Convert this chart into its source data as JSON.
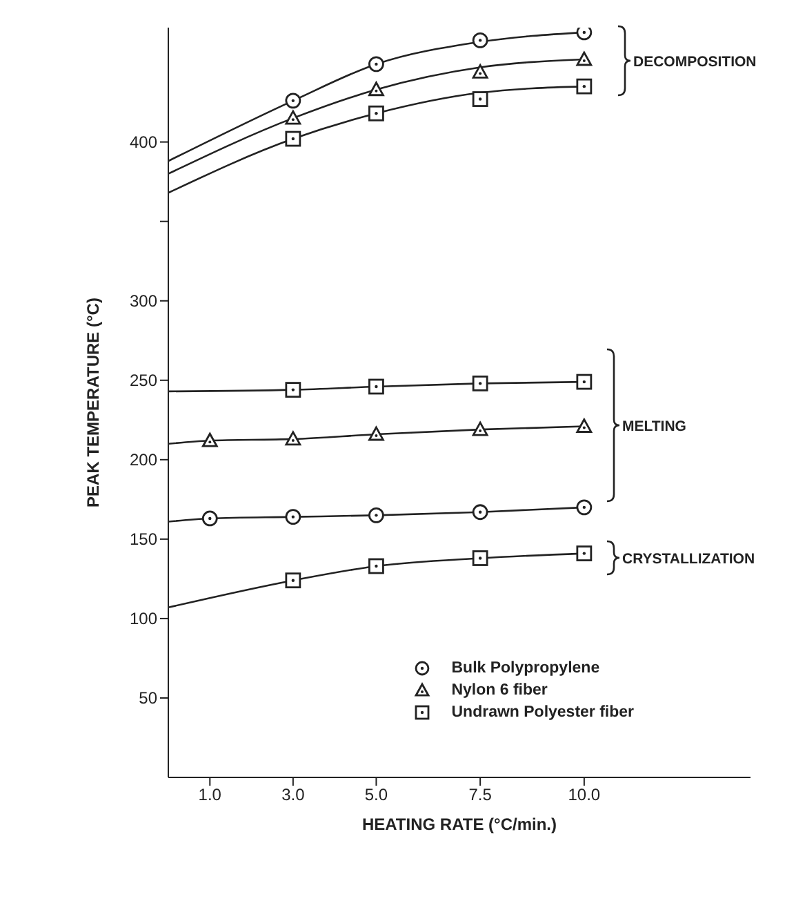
{
  "chart_data": {
    "type": "scatter",
    "xlabel": "HEATING RATE (°C/min.)",
    "ylabel": "PEAK TEMPERATURE (°C)",
    "xlim": [
      0,
      14
    ],
    "xticks": [
      {
        "value": 1,
        "label": "1.0"
      },
      {
        "value": 3,
        "label": "3.0"
      },
      {
        "value": 5,
        "label": "5.0"
      },
      {
        "value": 7.5,
        "label": "7.5"
      },
      {
        "value": 10,
        "label": "10.0"
      }
    ],
    "ylim": [
      0,
      472
    ],
    "yticks": [
      50,
      100,
      150,
      200,
      250,
      300,
      {
        "value": 350,
        "label": null
      },
      400
    ],
    "legend": "bottom right",
    "series": [
      {
        "name": "Bulk Polypropylene",
        "marker": "circle",
        "color": "#222222",
        "x": [
          3,
          5,
          7.5,
          10
        ],
        "values": [
          426,
          449,
          464,
          469
        ]
      },
      {
        "name": "Nylon 6 fiber",
        "marker": "triangle",
        "color": "#222222",
        "x": [
          3,
          5,
          7.5,
          10
        ],
        "values": [
          415,
          433,
          444,
          452
        ]
      },
      {
        "name": "Undrawn Polyester fiber",
        "marker": "square",
        "color": "#222222",
        "x": [
          3,
          5,
          7.5,
          10
        ],
        "values": [
          402,
          418,
          427,
          435
        ]
      },
      {
        "marker": "square",
        "color": "#222222",
        "x": [
          3,
          5,
          7.5,
          10
        ],
        "values": [
          244,
          246,
          248,
          249
        ]
      },
      {
        "marker": "triangle",
        "color": "#222222",
        "x": [
          1,
          3,
          5,
          7.5,
          10
        ],
        "values": [
          212,
          213,
          216,
          219,
          221
        ]
      },
      {
        "marker": "circle",
        "color": "#222222",
        "x": [
          1,
          3,
          5,
          7.5,
          10
        ],
        "values": [
          163,
          164,
          165,
          167,
          170
        ]
      },
      {
        "marker": "square",
        "color": "#222222",
        "x": [
          3,
          5,
          7.5,
          10
        ],
        "values": [
          124,
          133,
          138,
          141
        ]
      },
      {
        "type": "line",
        "color": "#222222",
        "x": [
          0,
          3,
          5,
          7.5,
          10
        ],
        "values": [
          388,
          426,
          449,
          463,
          469
        ]
      },
      {
        "type": "line",
        "color": "#222222",
        "x": [
          0,
          3,
          5,
          7.5,
          10
        ],
        "values": [
          380,
          415,
          433,
          447,
          452
        ]
      },
      {
        "type": "line",
        "color": "#222222",
        "x": [
          0,
          3,
          5,
          7.5,
          10
        ],
        "values": [
          368,
          402,
          418,
          431,
          435
        ]
      },
      {
        "type": "line",
        "color": "#222222",
        "x": [
          0,
          3,
          5,
          7.5,
          10
        ],
        "values": [
          243,
          244,
          246,
          248,
          249
        ]
      },
      {
        "type": "line",
        "color": "#222222",
        "x": [
          0,
          1,
          3,
          5,
          7.5,
          10
        ],
        "values": [
          210,
          212,
          213,
          216,
          219,
          221
        ]
      },
      {
        "type": "line",
        "color": "#222222",
        "x": [
          0,
          1,
          3,
          5,
          7.5,
          10
        ],
        "values": [
          161,
          163,
          164,
          165,
          167,
          170
        ]
      },
      {
        "type": "line",
        "color": "#222222",
        "x": [
          0,
          3,
          5,
          7.5,
          10
        ],
        "values": [
          107,
          124,
          133,
          138,
          141
        ]
      }
    ],
    "annotations": [
      "DECOMPOSITION",
      "MELTING",
      "CRYSTALLIZATION"
    ]
  }
}
